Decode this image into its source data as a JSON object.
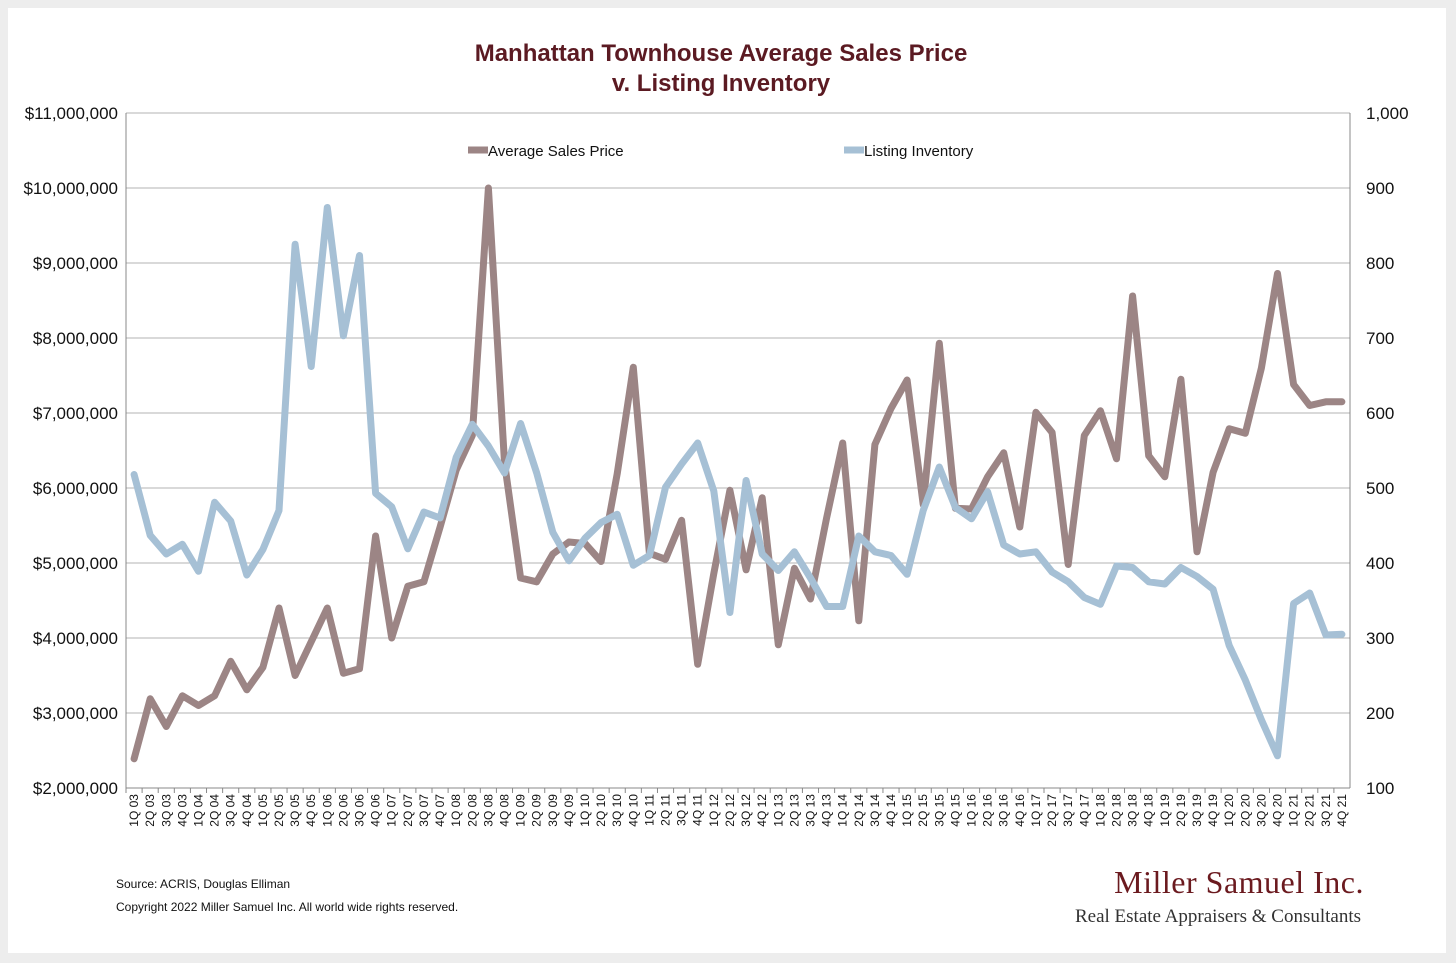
{
  "chart_data": {
    "type": "line",
    "title": [
      "Manhattan Townhouse Average Sales Price",
      "v. Listing Inventory"
    ],
    "categories": [
      "1Q 03",
      "2Q 03",
      "3Q 03",
      "4Q 03",
      "1Q 04",
      "2Q 04",
      "3Q 04",
      "4Q 04",
      "1Q 05",
      "2Q 05",
      "3Q 05",
      "4Q 05",
      "1Q 06",
      "2Q 06",
      "3Q 06",
      "4Q 06",
      "1Q 07",
      "2Q 07",
      "3Q 07",
      "4Q 07",
      "1Q 08",
      "2Q 08",
      "3Q 08",
      "4Q 08",
      "1Q 09",
      "2Q 09",
      "3Q 09",
      "4Q 09",
      "1Q 10",
      "2Q 10",
      "3Q 10",
      "4Q 10",
      "1Q 11",
      "2Q 11",
      "3Q 11",
      "4Q 11",
      "1Q 12",
      "2Q 12",
      "3Q 12",
      "4Q 12",
      "1Q 13",
      "2Q 13",
      "3Q 13",
      "4Q 13",
      "1Q 14",
      "2Q 14",
      "3Q 14",
      "4Q 14",
      "1Q 15",
      "2Q 15",
      "3Q 15",
      "4Q 15",
      "1Q 16",
      "2Q 16",
      "3Q 16",
      "4Q 16",
      "1Q 17",
      "2Q 17",
      "3Q 17",
      "4Q 17",
      "1Q 18",
      "2Q 18",
      "3Q 18",
      "4Q 18",
      "1Q 19",
      "2Q 19",
      "3Q 19",
      "4Q 19",
      "1Q 20",
      "2Q 20",
      "3Q 20",
      "4Q 20",
      "1Q 21",
      "2Q 21",
      "3Q 21",
      "4Q 21"
    ],
    "series": [
      {
        "name": "Average Sales Price",
        "axis": "left",
        "color": "#9c8585",
        "values": [
          2390000,
          3190000,
          2820000,
          3230000,
          3100000,
          3230000,
          3690000,
          3310000,
          3610000,
          4400000,
          3500000,
          3950000,
          4400000,
          3530000,
          3590000,
          5360000,
          4000000,
          4690000,
          4750000,
          5480000,
          6240000,
          6700000,
          10000000,
          6340000,
          4800000,
          4750000,
          5120000,
          5280000,
          5260000,
          5020000,
          6190000,
          7610000,
          5130000,
          5050000,
          5570000,
          3650000,
          4860000,
          5970000,
          4910000,
          5870000,
          3910000,
          4930000,
          4520000,
          5600000,
          6600000,
          4230000,
          6580000,
          7060000,
          7440000,
          5780000,
          7930000,
          5730000,
          5720000,
          6150000,
          6470000,
          5480000,
          7010000,
          6740000,
          4980000,
          6700000,
          7030000,
          6390000,
          8560000,
          6430000,
          6150000,
          7450000,
          5150000,
          6210000,
          6790000,
          6730000,
          7600000,
          8860000,
          7380000,
          7100000,
          7150000,
          7150000
        ]
      },
      {
        "name": "Listing Inventory",
        "axis": "right",
        "color": "#a6c0d5",
        "values": [
          518,
          437,
          412,
          425,
          389,
          481,
          456,
          384,
          418,
          470,
          825,
          662,
          874,
          703,
          810,
          493,
          475,
          419,
          468,
          460,
          541,
          585,
          556,
          520,
          586,
          520,
          441,
          403,
          433,
          454,
          465,
          397,
          410,
          501,
          532,
          560,
          496,
          334,
          510,
          412,
          390,
          415,
          380,
          342,
          342,
          436,
          415,
          410,
          385,
          470,
          528,
          474,
          459,
          495,
          424,
          412,
          415,
          388,
          375,
          354,
          345,
          396,
          394,
          375,
          372,
          394,
          382,
          365,
          290,
          244,
          191,
          143,
          346,
          360,
          304,
          305
        ]
      }
    ],
    "y_left": {
      "min": 2000000,
      "max": 11000000,
      "ticks": [
        "$2,000,000",
        "$3,000,000",
        "$4,000,000",
        "$5,000,000",
        "$6,000,000",
        "$7,000,000",
        "$8,000,000",
        "$9,000,000",
        "$10,000,000",
        "$11,000,000"
      ]
    },
    "y_right": {
      "min": 100,
      "max": 1000,
      "ticks": [
        "100",
        "200",
        "300",
        "400",
        "500",
        "600",
        "700",
        "800",
        "900",
        "1,000"
      ]
    },
    "grid": true,
    "legend_placement": "top"
  },
  "footer": {
    "source": "Source: ACRIS, Douglas Elliman",
    "copyright": "Copyright 2022 Miller Samuel Inc.  All world wide rights reserved."
  },
  "logo": {
    "name": "Miller Samuel Inc.",
    "tagline": "Real Estate Appraisers & Consultants"
  }
}
